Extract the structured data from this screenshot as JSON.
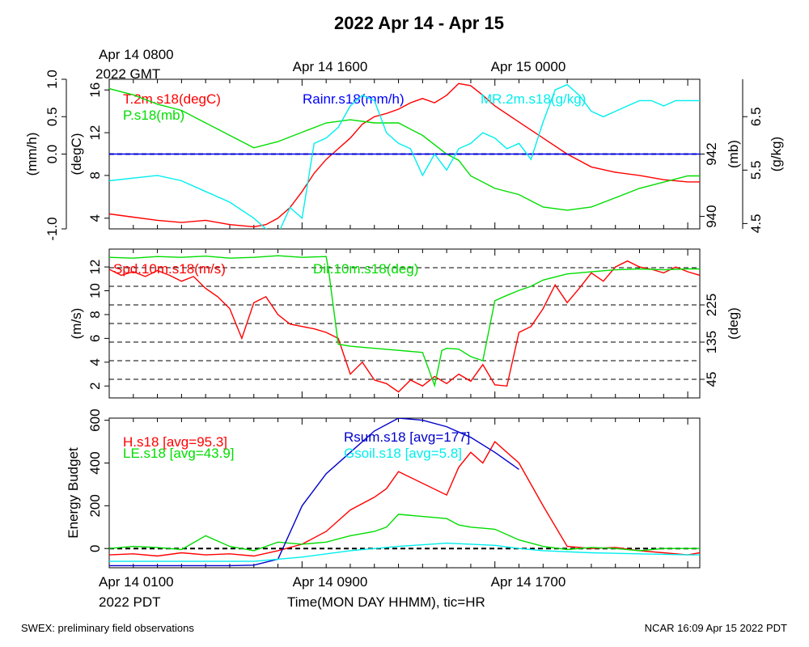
{
  "chart_data": {
    "title": "2022 Apr 14 - Apr 15",
    "type": "line",
    "top_time_labels": [
      {
        "line1": "Apr 14 0800",
        "line2": "2022 GMT"
      },
      {
        "line1": "Apr 14 1600",
        "line2": ""
      },
      {
        "line1": "Apr 15 0000",
        "line2": ""
      }
    ],
    "bottom_time_labels": [
      {
        "line1": "Apr 14 0100",
        "line2": "2022 PDT"
      },
      {
        "line1": "Apr 14 0900",
        "line2": ""
      },
      {
        "line1": "Apr 14 1700",
        "line2": ""
      }
    ],
    "xlabel": "Time(MON DAY HHMM), tic=HR",
    "footer_left": "SWEX: preliminary field observations",
    "footer_right": "NCAR 16:09 Apr 15 2022 PDT",
    "x_unit": "hours since Apr 14 0100 PDT",
    "xlim": [
      0,
      24.5
    ],
    "panels": [
      {
        "axes": [
          {
            "label": "(mm/h)",
            "ticks": [
              "-1.0",
              "0.0",
              "0.5",
              "1.0"
            ],
            "ylim": [
              -1,
              1
            ],
            "side": "left"
          },
          {
            "label": "(degC)",
            "ticks": [
              "4",
              "8",
              "12",
              "16"
            ],
            "ylim": [
              3,
              17
            ],
            "side": "left"
          },
          {
            "label": "(mb)",
            "ticks": [
              "940",
              "942"
            ],
            "ylim": [
              939.6,
              944.4
            ],
            "side": "right"
          },
          {
            "label": "(g/kg)",
            "ticks": [
              "4.5",
              "5.5",
              "6.5"
            ],
            "ylim": [
              4.4,
              7.2
            ],
            "side": "right"
          }
        ],
        "series": [
          {
            "name": "T.2m.s18(degC)",
            "color": "#ff0000",
            "axis": 1,
            "x": [
              0,
              1,
              2,
              3,
              4,
              5,
              6,
              6.5,
              7,
              7.5,
              8,
              8.5,
              9,
              9.5,
              10,
              10.5,
              11,
              11.5,
              12,
              12.5,
              13,
              13.5,
              14,
              14.5,
              15,
              15.5,
              16,
              17,
              18,
              19,
              20,
              21,
              22,
              23,
              24,
              24.5
            ],
            "y": [
              4.4,
              4.1,
              3.8,
              3.6,
              3.8,
              3.4,
              3.2,
              3.4,
              4.0,
              5.0,
              6.5,
              8.2,
              9.5,
              10.5,
              11.5,
              12.8,
              13.5,
              13.8,
              14.2,
              14.8,
              15.2,
              14.8,
              15.5,
              16.6,
              16.4,
              15.5,
              14.5,
              13.0,
              11.5,
              10.0,
              8.8,
              8.3,
              8.0,
              7.6,
              7.4,
              7.4
            ]
          },
          {
            "name": "P.s18(mb)",
            "color": "#00dd00",
            "axis": 2,
            "x": [
              0,
              1,
              2,
              3,
              4,
              5,
              6,
              7,
              8,
              9,
              10,
              11,
              12,
              13,
              13.5,
              14,
              14.5,
              15,
              16,
              17,
              18,
              19,
              20,
              21,
              22,
              23,
              24,
              24.5
            ],
            "y": [
              944.1,
              943.9,
              943.6,
              943.4,
              943.0,
              942.6,
              942.2,
              942.4,
              942.7,
              943.0,
              943.1,
              943.0,
              943.0,
              942.6,
              942.3,
              942.0,
              941.8,
              941.3,
              940.9,
              940.7,
              940.3,
              940.2,
              940.3,
              940.6,
              940.9,
              941.1,
              941.3,
              941.3
            ]
          },
          {
            "name": "Rainr.s18(mm/h)",
            "color": "#0000ff",
            "axis": 0,
            "x": [
              0,
              24.5
            ],
            "y": [
              0,
              0
            ]
          },
          {
            "name": "MR.2m.s18(g/kg)",
            "color": "#00eeee",
            "axis": 3,
            "x": [
              0,
              1,
              2,
              3,
              4,
              5,
              6,
              6.5,
              7,
              7.5,
              8,
              8.5,
              9,
              9.5,
              10,
              10.5,
              11,
              11.5,
              12,
              12.5,
              13,
              13.5,
              14,
              14.5,
              15,
              15.5,
              16,
              16.5,
              17,
              17.5,
              18,
              18.5,
              19,
              19.5,
              20,
              20.5,
              21,
              21.5,
              22,
              22.5,
              23,
              23.5,
              24,
              24.5
            ],
            "y": [
              5.3,
              5.35,
              5.4,
              5.3,
              5.1,
              4.9,
              4.6,
              4.4,
              4.3,
              4.8,
              4.6,
              6.0,
              6.1,
              6.3,
              6.7,
              6.9,
              6.8,
              6.2,
              6.0,
              5.9,
              5.4,
              5.8,
              5.5,
              5.9,
              6.0,
              6.2,
              6.1,
              5.9,
              6.0,
              5.7,
              6.4,
              7.0,
              7.1,
              6.9,
              6.6,
              6.5,
              6.6,
              6.7,
              6.8,
              6.8,
              6.7,
              6.8,
              6.8,
              6.8
            ]
          }
        ]
      },
      {
        "axes": [
          {
            "label": "(m/s)",
            "ticks": [
              "2",
              "4",
              "6",
              "8",
              "10",
              "12"
            ],
            "ylim": [
              1,
              13.5
            ],
            "side": "left"
          },
          {
            "label": "(deg)",
            "ticks": [
              "45",
              "135",
              "225"
            ],
            "ylim": [
              0,
              360
            ],
            "side": "right"
          }
        ],
        "series": [
          {
            "name": "Spd.10m.s18(m/s)",
            "color": "#ff0000",
            "axis": 0,
            "x": [
              0,
              0.5,
              1,
              1.5,
              2,
              2.5,
              3,
              3.5,
              4,
              4.5,
              5,
              5.5,
              6,
              6.5,
              7,
              7.5,
              8,
              8.5,
              9,
              9.5,
              10,
              10.5,
              11,
              11.5,
              12,
              12.5,
              13,
              13.5,
              14,
              14.5,
              15,
              15.5,
              16,
              16.5,
              17,
              17.5,
              18,
              18.5,
              19,
              19.5,
              20,
              20.5,
              21,
              21.5,
              22,
              22.5,
              23,
              23.5,
              24,
              24.5
            ],
            "y": [
              11.8,
              11.3,
              11.6,
              11.2,
              11.7,
              11.3,
              10.8,
              11.2,
              10.2,
              9.5,
              8.5,
              6.0,
              9.0,
              9.5,
              8.0,
              7.2,
              7.0,
              6.8,
              6.5,
              6.0,
              3.0,
              4.0,
              2.5,
              2.2,
              1.5,
              2.5,
              2.0,
              2.8,
              2.2,
              3.0,
              2.4,
              3.8,
              2.1,
              2.0,
              6.5,
              7.0,
              8.5,
              10.5,
              9.0,
              10.2,
              11.5,
              10.8,
              12.0,
              12.5,
              12.0,
              11.8,
              11.5,
              12.0,
              11.6,
              11.3
            ]
          },
          {
            "name": "Dir.10m.s18(deg)",
            "color": "#00dd00",
            "axis": 1,
            "x": [
              0,
              1,
              2,
              3,
              4,
              5,
              6,
              7,
              8,
              9,
              9.1,
              9.5,
              10,
              11,
              12,
              13,
              13.5,
              13.8,
              14,
              14.5,
              15,
              15.5,
              16,
              16.5,
              17,
              17.5,
              18,
              19,
              20,
              21,
              22,
              23,
              24,
              24.5
            ],
            "y": [
              340,
              338,
              342,
              340,
              343,
              338,
              340,
              344,
              340,
              342,
              310,
              130,
              125,
              120,
              115,
              110,
              30,
              115,
              120,
              118,
              100,
              90,
              235,
              248,
              260,
              270,
              285,
              300,
              305,
              310,
              312,
              310,
              312,
              312
            ]
          }
        ]
      },
      {
        "axes": [
          {
            "label": "Energy Budget",
            "ticks": [
              "0",
              "200",
              "400",
              "600"
            ],
            "ylim": [
              -90,
              610
            ],
            "side": "left"
          }
        ],
        "series": [
          {
            "name": "H.s18 [avg=95.3]",
            "color": "#ff0000",
            "axis": 0,
            "x": [
              0,
              1,
              2,
              3,
              4,
              5,
              6,
              7,
              8,
              9,
              10,
              11,
              11.5,
              12,
              14,
              14.5,
              15,
              15.5,
              16,
              17,
              18,
              19,
              20,
              21,
              22,
              23,
              24,
              24.5
            ],
            "y": [
              -30,
              -25,
              -35,
              -20,
              -30,
              -25,
              -35,
              -10,
              20,
              80,
              180,
              240,
              280,
              360,
              250,
              380,
              450,
              400,
              500,
              400,
              200,
              10,
              0,
              5,
              -10,
              -20,
              -30,
              -20
            ]
          },
          {
            "name": "LE.s18 [avg=43.9]",
            "color": "#00dd00",
            "axis": 0,
            "x": [
              0,
              1,
              2,
              3,
              4,
              5,
              6,
              7,
              8,
              9,
              10,
              11,
              11.5,
              12,
              14,
              14.5,
              15,
              15.5,
              16,
              17,
              18,
              19,
              20,
              21,
              22,
              23,
              24,
              24.5
            ],
            "y": [
              0,
              10,
              5,
              -5,
              60,
              10,
              -10,
              30,
              20,
              30,
              60,
              80,
              100,
              160,
              140,
              110,
              100,
              95,
              90,
              40,
              10,
              -5,
              5,
              0,
              -10,
              0,
              0,
              0
            ]
          },
          {
            "name": "Rsum.s18 [avg=177]",
            "color": "#0000cc",
            "axis": 0,
            "x": [
              0,
              1,
              2,
              3,
              4,
              5,
              6,
              7,
              8,
              9,
              10,
              11,
              12,
              13,
              14,
              15,
              16,
              17
            ],
            "y": [
              -80,
              -80,
              -80,
              -80,
              -80,
              -80,
              -78,
              -50,
              200,
              350,
              450,
              550,
              610,
              600,
              570,
              520,
              450,
              370
            ]
          },
          {
            "name": "Gsoil.s18 [avg=5.8]",
            "color": "#00eeee",
            "axis": 0,
            "x": [
              0,
              2,
              4,
              6,
              8,
              10,
              12,
              14,
              16,
              17,
              18,
              20,
              22,
              24,
              24.5
            ],
            "y": [
              -60,
              -60,
              -60,
              -60,
              -40,
              -10,
              10,
              25,
              15,
              0,
              -10,
              -20,
              -25,
              -30,
              -30
            ]
          }
        ]
      }
    ]
  }
}
